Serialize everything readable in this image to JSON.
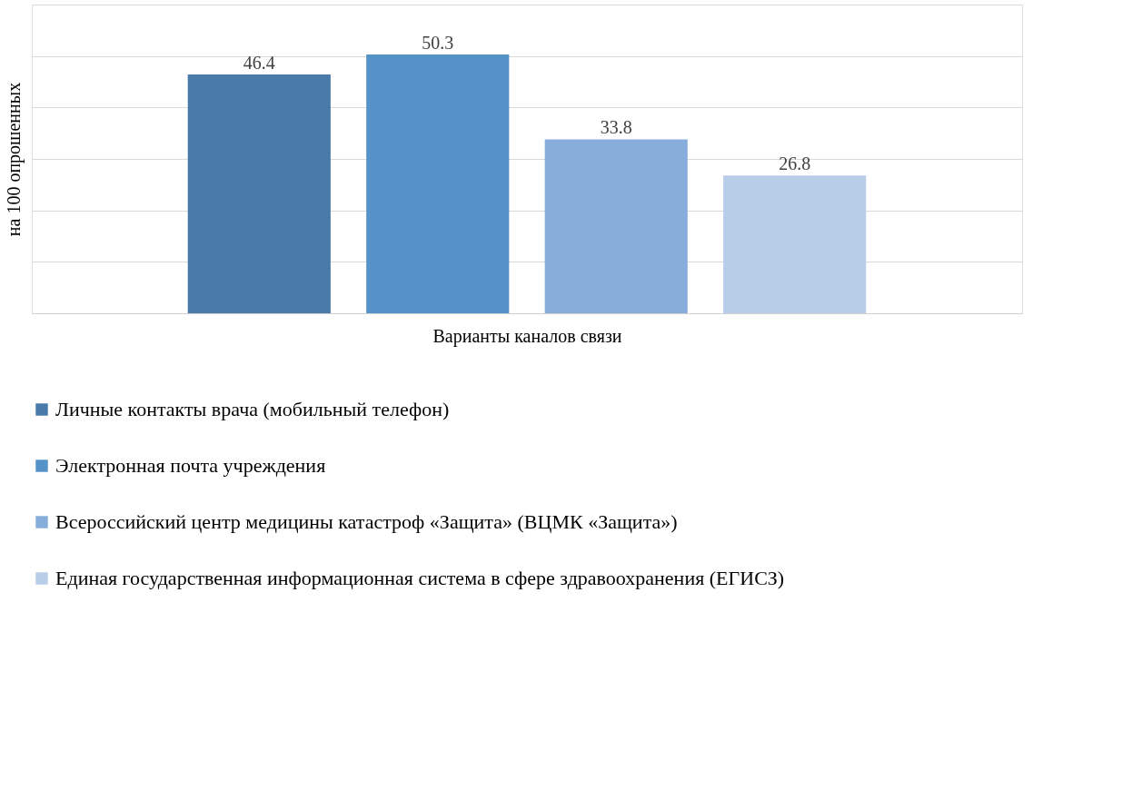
{
  "chart_data": {
    "type": "bar",
    "ylabel": "на 100 опрошенных",
    "xlabel": "Варианты каналов связи",
    "categories": [
      null
    ],
    "series": [
      {
        "name": "Личные контакты врача (мобильный телефон)",
        "color": "#4a7aaa",
        "values": [
          46.4
        ]
      },
      {
        "name": "Электронная почта учреждения",
        "color": "#5592c8",
        "values": [
          50.3
        ]
      },
      {
        "name": "Всероссийский центр медицины катастроф «Защита» (ВЦМК «Защита»)",
        "color": "#87aedb",
        "values": [
          33.8
        ]
      },
      {
        "name": "Единая государственная информационная система в сфере здравоохранения (ЕГИСЗ)",
        "color": "#b8cde8",
        "values": [
          26.8
        ]
      }
    ],
    "ylim": [
      0,
      60
    ],
    "yticks": [
      {
        "value": 0,
        "label": null
      },
      {
        "value": 10,
        "label": null
      },
      {
        "value": 20,
        "label": null
      },
      {
        "value": 30,
        "label": null
      },
      {
        "value": 40,
        "label": null
      },
      {
        "value": 50,
        "label": null
      },
      {
        "value": 60,
        "label": null
      }
    ],
    "tick_labels": false,
    "grid": "y",
    "data_labels": true,
    "legend": "bottom"
  }
}
